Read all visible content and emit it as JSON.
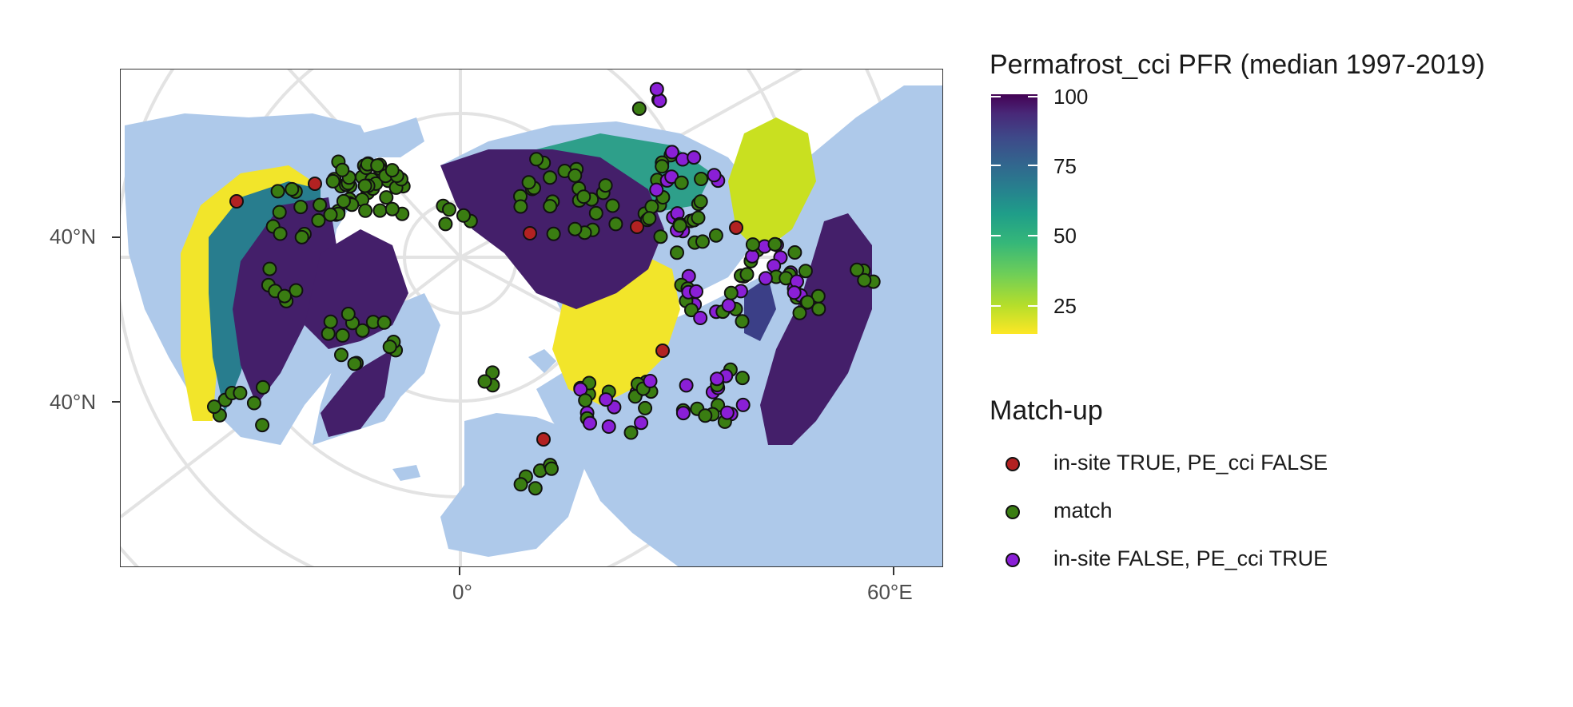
{
  "map": {
    "y_axis_labels": [
      "40°N",
      "40°N"
    ],
    "x_axis_labels": [
      "0°",
      "60°E"
    ],
    "colors": {
      "ocean": "#ffffff",
      "land": "#aec9ea",
      "graticule": "#e3e3e3",
      "pfr_high": "#441f6a",
      "pfr_mid": "#287d8e",
      "pfr_low": "#f2e52a"
    }
  },
  "legend_pfr": {
    "title": "Permafrost_cci PFR (median 1997-2019)",
    "ticks": [
      "100",
      "75",
      "50",
      "25"
    ],
    "palette": "viridis"
  },
  "legend_match": {
    "title": "Match-up",
    "items": [
      {
        "label": "in-site TRUE, PE_cci FALSE",
        "color": "#b22222"
      },
      {
        "label": "match",
        "color": "#3a7d12"
      },
      {
        "label": "in-site FALSE, PE_cci TRUE",
        "color": "#8a1fd6"
      }
    ]
  }
}
